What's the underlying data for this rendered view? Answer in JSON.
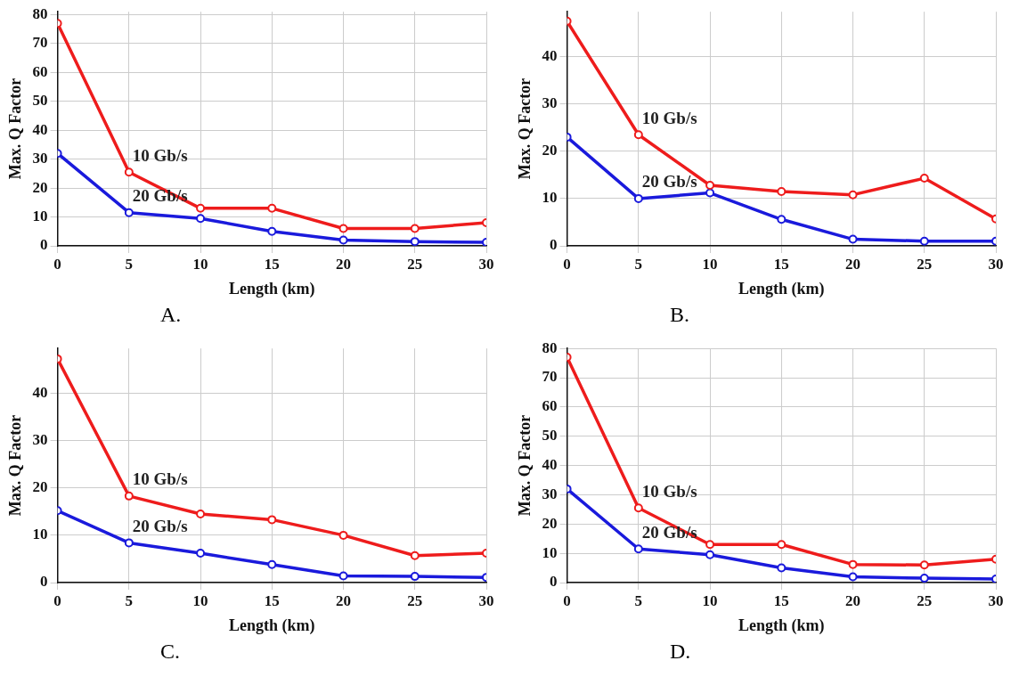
{
  "chart_data": [
    {
      "type": "line",
      "xlabel": "Length (km)",
      "ylabel": "Max. Q Factor",
      "x": [
        0,
        5,
        10,
        15,
        20,
        25,
        30
      ],
      "xlim": [
        0,
        30
      ],
      "xticks": [
        0,
        5,
        10,
        15,
        20,
        25,
        30
      ],
      "ylim": [
        0,
        81
      ],
      "yticks": [
        0,
        10,
        20,
        30,
        40,
        50,
        60,
        70,
        80
      ],
      "grid": true,
      "marker": "circle",
      "annotations": [
        "A."
      ],
      "series": [
        {
          "name": "10 Gb/s",
          "color": "#ee1c1c",
          "values": [
            77,
            25.5,
            13,
            13,
            6,
            6,
            8
          ]
        },
        {
          "name": "20 Gb/s",
          "color": "#1a1adc",
          "values": [
            32,
            11.5,
            9.5,
            5,
            2,
            1.5,
            1.2
          ]
        }
      ]
    },
    {
      "type": "line",
      "xlabel": "Length (km)",
      "ylabel": "Max. Q Factor",
      "x": [
        0,
        5,
        10,
        15,
        20,
        25,
        30
      ],
      "xlim": [
        0,
        30
      ],
      "xticks": [
        0,
        5,
        10,
        15,
        20,
        25,
        30
      ],
      "ylim": [
        0,
        49.5
      ],
      "yticks": [
        0,
        10,
        20,
        30,
        40
      ],
      "grid": true,
      "marker": "circle",
      "annotations": [
        "B."
      ],
      "series": [
        {
          "name": "10 Gb/s",
          "color": "#ee1c1c",
          "values": [
            47.5,
            23.5,
            12.8,
            11.5,
            10.8,
            14.3,
            5.7
          ]
        },
        {
          "name": "20 Gb/s",
          "color": "#1a1adc",
          "values": [
            23,
            10,
            11.2,
            5.6,
            1.4,
            1,
            1
          ]
        }
      ]
    },
    {
      "type": "line",
      "xlabel": "Length (km)",
      "ylabel": "Max. Q Factor",
      "x": [
        0,
        5,
        10,
        15,
        20,
        25,
        30
      ],
      "xlim": [
        0,
        30
      ],
      "xticks": [
        0,
        5,
        10,
        15,
        20,
        25,
        30
      ],
      "ylim": [
        0,
        49.5
      ],
      "yticks": [
        0,
        10,
        20,
        30,
        40
      ],
      "grid": true,
      "marker": "circle",
      "annotations": [
        "C."
      ],
      "series": [
        {
          "name": "10 Gb/s",
          "color": "#ee1c1c",
          "values": [
            47.3,
            18.3,
            14.5,
            13.3,
            10,
            5.7,
            6.2
          ]
        },
        {
          "name": "20 Gb/s",
          "color": "#1a1adc",
          "values": [
            15.2,
            8.4,
            6.2,
            3.8,
            1.4,
            1.3,
            1.1
          ]
        }
      ]
    },
    {
      "type": "line",
      "xlabel": "Length (km)",
      "ylabel": "Max. Q Factor",
      "x": [
        0,
        5,
        10,
        15,
        20,
        25,
        30
      ],
      "xlim": [
        0,
        30
      ],
      "xticks": [
        0,
        5,
        10,
        15,
        20,
        25,
        30
      ],
      "ylim": [
        0,
        80
      ],
      "yticks": [
        0,
        10,
        20,
        30,
        40,
        50,
        60,
        70,
        80
      ],
      "grid": true,
      "marker": "circle",
      "annotations": [
        "D."
      ],
      "series": [
        {
          "name": "10 Gb/s",
          "color": "#ee1c1c",
          "values": [
            77,
            25.5,
            13,
            13,
            6.2,
            6,
            8
          ]
        },
        {
          "name": "20 Gb/s",
          "color": "#1a1adc",
          "values": [
            32,
            11.5,
            9.5,
            5,
            2,
            1.5,
            1.2
          ]
        }
      ]
    }
  ]
}
